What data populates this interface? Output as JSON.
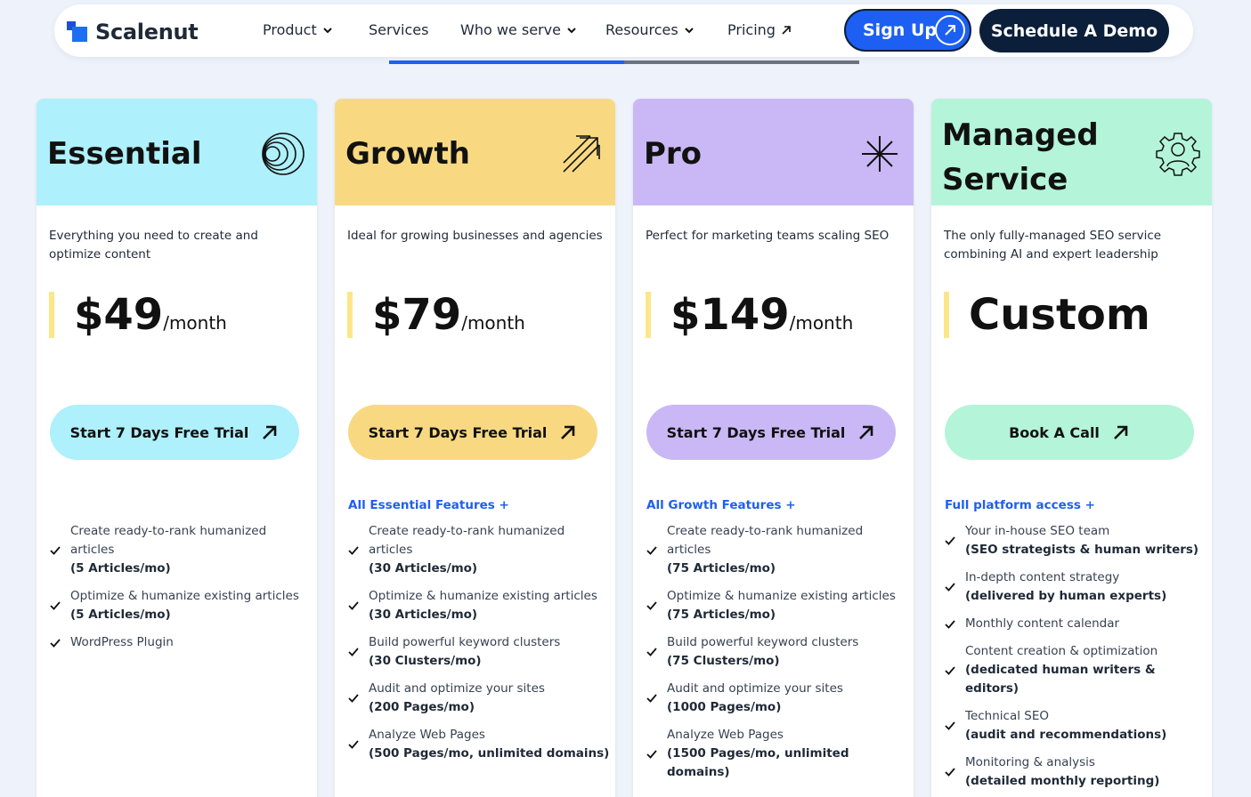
{
  "nav": {
    "brand": "Scalenut",
    "items": [
      {
        "label": "Product",
        "icon": "chevron-down-icon"
      },
      {
        "label": "Services"
      },
      {
        "label": "Who we serve",
        "icon": "chevron-down-icon"
      },
      {
        "label": "Resources",
        "icon": "chevron-down-icon"
      },
      {
        "label": "Pricing",
        "icon": "arrow-up-right-icon"
      }
    ],
    "signup_label": "Sign Up",
    "demo_label": "Schedule A Demo"
  },
  "colors": {
    "accent_blue": "#1d5ff2",
    "navy": "#0b1f3a",
    "essential": "#aef0fb",
    "growth": "#f8d982",
    "pro": "#c9b8f5",
    "managed": "#b4f5d9",
    "price_bar": "#fde68a"
  },
  "plans": [
    {
      "name": "Essential",
      "icon": "concentric-circles-icon",
      "description": "Everything you need to create and optimize content",
      "price": "$49",
      "per": "/month",
      "cta": "Start 7 Days Free Trial",
      "features_heading": "",
      "features": [
        {
          "text": "Create ready-to-rank humanized articles",
          "sub": "(5 Articles/mo)"
        },
        {
          "text": "Optimize & humanize existing articles",
          "sub": "(5 Articles/mo)"
        },
        {
          "text": "WordPress Plugin",
          "sub": ""
        }
      ]
    },
    {
      "name": "Growth",
      "icon": "growth-arrow-icon",
      "description": "Ideal for growing businesses and agencies",
      "price": "$79",
      "per": "/month",
      "cta": "Start 7 Days Free Trial",
      "features_heading": "All Essential Features +",
      "features": [
        {
          "text": "Create ready-to-rank humanized articles",
          "sub": "(30 Articles/mo)"
        },
        {
          "text": "Optimize & humanize existing articles",
          "sub": "(30 Articles/mo)"
        },
        {
          "text": "Build powerful keyword clusters",
          "sub": "(30 Clusters/mo)"
        },
        {
          "text": "Audit and optimize your sites",
          "sub": "(200 Pages/mo)"
        },
        {
          "text": "Analyze Web Pages",
          "sub": "(500 Pages/mo, unlimited domains)"
        }
      ]
    },
    {
      "name": "Pro",
      "icon": "asterisk-star-icon",
      "description": "Perfect for marketing teams scaling SEO",
      "price": "$149",
      "per": "/month",
      "cta": "Start 7 Days Free Trial",
      "features_heading": "All Growth Features +",
      "features": [
        {
          "text": "Create ready-to-rank humanized articles",
          "sub": "(75 Articles/mo)"
        },
        {
          "text": "Optimize & humanize existing articles",
          "sub": "(75 Articles/mo)"
        },
        {
          "text": "Build powerful keyword clusters",
          "sub": "(75 Clusters/mo)"
        },
        {
          "text": "Audit and optimize your sites",
          "sub": "(1000 Pages/mo)"
        },
        {
          "text": "Analyze Web Pages",
          "sub": "(1500 Pages/mo, unlimited domains)"
        }
      ]
    },
    {
      "name": "Managed Service",
      "icon": "team-gear-icon",
      "description": "The only fully-managed SEO service combining AI and expert leadership",
      "price": "Custom",
      "per": "",
      "cta": "Book A Call",
      "features_heading": "Full platform access +",
      "features": [
        {
          "text": "Your in-house SEO team",
          "sub": "(SEO strategists & human writers)"
        },
        {
          "text": "In-depth content strategy",
          "sub": "(delivered by human experts)"
        },
        {
          "text": "Monthly content calendar",
          "sub": ""
        },
        {
          "text": "Content creation & optimization",
          "sub": "(dedicated human writers & editors)"
        },
        {
          "text": "Technical SEO",
          "sub": "(audit and recommendations)"
        },
        {
          "text": "Monitoring & analysis",
          "sub": "(detailed monthly reporting)"
        }
      ]
    }
  ]
}
